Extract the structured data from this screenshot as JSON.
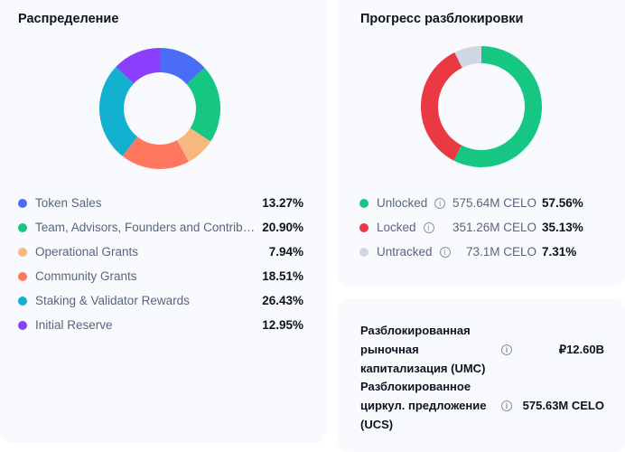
{
  "distribution": {
    "title": "Распределение",
    "items": [
      {
        "label": "Token Sales",
        "pct": "13.27%",
        "value": 13.27,
        "color": "#4a6cf7"
      },
      {
        "label": "Team, Advisors, Founders and Contributors",
        "pct": "20.90%",
        "value": 20.9,
        "color": "#16c784"
      },
      {
        "label": "Operational Grants",
        "pct": "7.94%",
        "value": 7.94,
        "color": "#f6b87e"
      },
      {
        "label": "Community Grants",
        "pct": "18.51%",
        "value": 18.51,
        "color": "#ff775f"
      },
      {
        "label": "Staking & Validator Rewards",
        "pct": "26.43%",
        "value": 26.43,
        "color": "#12b0cf"
      },
      {
        "label": "Initial Reserve",
        "pct": "12.95%",
        "value": 12.95,
        "color": "#8a3ffc"
      }
    ]
  },
  "unlock": {
    "title": "Прогресс разблокировки",
    "items": [
      {
        "label": "Unlocked",
        "amount": "575.64M CELO",
        "pct": "57.56%",
        "value": 57.56,
        "color": "#16c784"
      },
      {
        "label": "Locked",
        "amount": "351.26M CELO",
        "pct": "35.13%",
        "value": 35.13,
        "color": "#ea3943"
      },
      {
        "label": "Untracked",
        "amount": "73.1M CELO",
        "pct": "7.31%",
        "value": 7.31,
        "color": "#cfd6e4"
      }
    ]
  },
  "stats": [
    {
      "label": "Разблокированная рыночная капитализация (UMC)",
      "value": "₽12.60B"
    },
    {
      "label": "Разблокированное циркул. предложение (UCS)",
      "value": "575.63M CELO"
    }
  ]
}
